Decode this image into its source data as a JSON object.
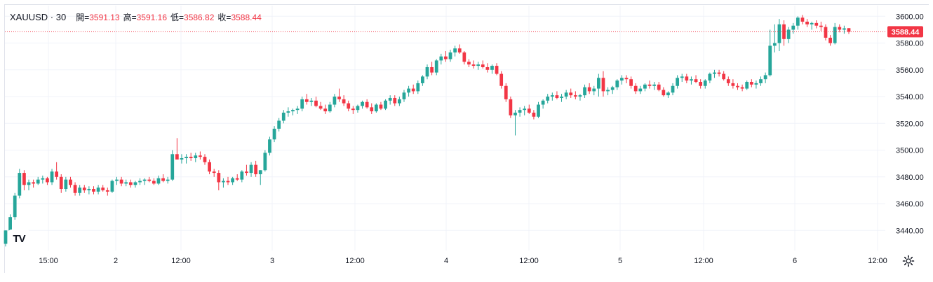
{
  "legend": {
    "symbol": "XAUUSD · 30",
    "open_label": "開=",
    "open": "3591.13",
    "high_label": "高=",
    "high": "3591.16",
    "low_label": "低=",
    "low": "3586.82",
    "close_label": "收=",
    "close": "3588.44"
  },
  "price_tag": "3588.44",
  "logo_text": "TV",
  "colors": {
    "up": "#26a69a",
    "down": "#f23645",
    "grid": "#f0f3fa",
    "price_line": "#f23645"
  },
  "chart_data": {
    "type": "candlestick",
    "symbol": "XAUUSD",
    "interval": "30",
    "ylim": [
      3425,
      3608
    ],
    "y_ticks": [
      3440,
      3460,
      3480,
      3500,
      3520,
      3540,
      3560,
      3580,
      3600
    ],
    "x_ticks": [
      "15:00",
      "2",
      "12:00",
      "3",
      "12:00",
      "4",
      "12:00",
      "5",
      "12:00",
      "6",
      "12:00"
    ],
    "last_price": 3588.44,
    "grid": true,
    "candles": [
      [
        3430,
        3440,
        3428,
        3440
      ],
      [
        3440,
        3452,
        3438,
        3450
      ],
      [
        3450,
        3468,
        3448,
        3466
      ],
      [
        3466,
        3486,
        3464,
        3483
      ],
      [
        3483,
        3485,
        3470,
        3474
      ],
      [
        3474,
        3478,
        3470,
        3476
      ],
      [
        3476,
        3478,
        3472,
        3475
      ],
      [
        3475,
        3480,
        3474,
        3478
      ],
      [
        3478,
        3481,
        3475,
        3479
      ],
      [
        3479,
        3480,
        3474,
        3476
      ],
      [
        3476,
        3486,
        3474,
        3484
      ],
      [
        3484,
        3491,
        3478,
        3480
      ],
      [
        3480,
        3482,
        3468,
        3471
      ],
      [
        3471,
        3480,
        3469,
        3478
      ],
      [
        3478,
        3480,
        3472,
        3474
      ],
      [
        3474,
        3476,
        3466,
        3468
      ],
      [
        3468,
        3474,
        3466,
        3472
      ],
      [
        3472,
        3474,
        3468,
        3470
      ],
      [
        3470,
        3473,
        3467,
        3471
      ],
      [
        3471,
        3473,
        3467,
        3469
      ],
      [
        3469,
        3474,
        3467,
        3472
      ],
      [
        3472,
        3474,
        3469,
        3470
      ],
      [
        3470,
        3472,
        3466,
        3469
      ],
      [
        3469,
        3478,
        3468,
        3477
      ],
      [
        3477,
        3480,
        3474,
        3478
      ],
      [
        3478,
        3480,
        3473,
        3475
      ],
      [
        3475,
        3478,
        3473,
        3476
      ],
      [
        3476,
        3478,
        3472,
        3474
      ],
      [
        3474,
        3477,
        3472,
        3476
      ],
      [
        3476,
        3479,
        3474,
        3477
      ],
      [
        3477,
        3479,
        3474,
        3478
      ],
      [
        3478,
        3480,
        3476,
        3477
      ],
      [
        3477,
        3479,
        3474,
        3475
      ],
      [
        3475,
        3481,
        3474,
        3479
      ],
      [
        3479,
        3482,
        3476,
        3477
      ],
      [
        3477,
        3480,
        3475,
        3478
      ],
      [
        3478,
        3500,
        3477,
        3497
      ],
      [
        3497,
        3509,
        3493,
        3493
      ],
      [
        3493,
        3497,
        3490,
        3494
      ],
      [
        3494,
        3497,
        3490,
        3495
      ],
      [
        3495,
        3498,
        3492,
        3494
      ],
      [
        3494,
        3498,
        3491,
        3496
      ],
      [
        3496,
        3499,
        3493,
        3495
      ],
      [
        3495,
        3497,
        3489,
        3491
      ],
      [
        3491,
        3493,
        3482,
        3484
      ],
      [
        3484,
        3486,
        3480,
        3483
      ],
      [
        3483,
        3485,
        3470,
        3476
      ],
      [
        3476,
        3479,
        3472,
        3477
      ],
      [
        3477,
        3480,
        3474,
        3476
      ],
      [
        3476,
        3480,
        3474,
        3479
      ],
      [
        3479,
        3482,
        3477,
        3478
      ],
      [
        3478,
        3485,
        3476,
        3484
      ],
      [
        3484,
        3489,
        3481,
        3483
      ],
      [
        3483,
        3491,
        3480,
        3489
      ],
      [
        3489,
        3492,
        3480,
        3482
      ],
      [
        3482,
        3485,
        3474,
        3485
      ],
      [
        3485,
        3500,
        3484,
        3498
      ],
      [
        3498,
        3510,
        3496,
        3508
      ],
      [
        3508,
        3518,
        3506,
        3516
      ],
      [
        3516,
        3524,
        3514,
        3522
      ],
      [
        3522,
        3530,
        3520,
        3528
      ],
      [
        3528,
        3532,
        3525,
        3529
      ],
      [
        3529,
        3531,
        3526,
        3530
      ],
      [
        3530,
        3533,
        3527,
        3531
      ],
      [
        3531,
        3540,
        3529,
        3538
      ],
      [
        3538,
        3542,
        3534,
        3536
      ],
      [
        3536,
        3539,
        3533,
        3537
      ],
      [
        3537,
        3540,
        3532,
        3533
      ],
      [
        3533,
        3536,
        3530,
        3531
      ],
      [
        3531,
        3534,
        3527,
        3529
      ],
      [
        3529,
        3536,
        3528,
        3534
      ],
      [
        3534,
        3542,
        3532,
        3540
      ],
      [
        3540,
        3546,
        3536,
        3538
      ],
      [
        3538,
        3541,
        3533,
        3535
      ],
      [
        3535,
        3537,
        3529,
        3531
      ],
      [
        3531,
        3533,
        3527,
        3530
      ],
      [
        3530,
        3534,
        3528,
        3533
      ],
      [
        3533,
        3537,
        3531,
        3536
      ],
      [
        3536,
        3538,
        3531,
        3532
      ],
      [
        3532,
        3535,
        3527,
        3529
      ],
      [
        3529,
        3535,
        3528,
        3534
      ],
      [
        3534,
        3536,
        3530,
        3531
      ],
      [
        3531,
        3538,
        3530,
        3537
      ],
      [
        3537,
        3541,
        3534,
        3539
      ],
      [
        3539,
        3541,
        3533,
        3535
      ],
      [
        3535,
        3540,
        3533,
        3538
      ],
      [
        3538,
        3545,
        3536,
        3543
      ],
      [
        3543,
        3548,
        3540,
        3546
      ],
      [
        3546,
        3549,
        3542,
        3544
      ],
      [
        3544,
        3552,
        3542,
        3550
      ],
      [
        3550,
        3556,
        3548,
        3555
      ],
      [
        3555,
        3564,
        3553,
        3562
      ],
      [
        3562,
        3566,
        3556,
        3558
      ],
      [
        3558,
        3568,
        3556,
        3567
      ],
      [
        3567,
        3572,
        3564,
        3570
      ],
      [
        3570,
        3574,
        3566,
        3568
      ],
      [
        3568,
        3575,
        3566,
        3573
      ],
      [
        3573,
        3578,
        3570,
        3576
      ],
      [
        3576,
        3579,
        3572,
        3573
      ],
      [
        3573,
        3574,
        3564,
        3566
      ],
      [
        3566,
        3568,
        3562,
        3564
      ],
      [
        3564,
        3567,
        3561,
        3563
      ],
      [
        3563,
        3566,
        3560,
        3564
      ],
      [
        3564,
        3567,
        3561,
        3562
      ],
      [
        3562,
        3565,
        3558,
        3560
      ],
      [
        3560,
        3564,
        3557,
        3563
      ],
      [
        3563,
        3565,
        3556,
        3557
      ],
      [
        3557,
        3559,
        3546,
        3548
      ],
      [
        3548,
        3550,
        3536,
        3538
      ],
      [
        3538,
        3540,
        3524,
        3526
      ],
      [
        3526,
        3530,
        3511,
        3528
      ],
      [
        3528,
        3532,
        3525,
        3530
      ],
      [
        3530,
        3533,
        3526,
        3531
      ],
      [
        3531,
        3534,
        3527,
        3528
      ],
      [
        3528,
        3530,
        3523,
        3525
      ],
      [
        3525,
        3536,
        3524,
        3534
      ],
      [
        3534,
        3538,
        3531,
        3537
      ],
      [
        3537,
        3542,
        3535,
        3540
      ],
      [
        3540,
        3543,
        3537,
        3541
      ],
      [
        3541,
        3544,
        3538,
        3539
      ],
      [
        3539,
        3542,
        3536,
        3540
      ],
      [
        3540,
        3545,
        3538,
        3543
      ],
      [
        3543,
        3546,
        3539,
        3541
      ],
      [
        3541,
        3544,
        3538,
        3540
      ],
      [
        3540,
        3542,
        3537,
        3541
      ],
      [
        3541,
        3549,
        3539,
        3547
      ],
      [
        3547,
        3550,
        3542,
        3544
      ],
      [
        3544,
        3548,
        3541,
        3546
      ],
      [
        3546,
        3557,
        3540,
        3554
      ],
      [
        3554,
        3559,
        3540,
        3544
      ],
      [
        3544,
        3547,
        3541,
        3545
      ],
      [
        3545,
        3548,
        3542,
        3547
      ],
      [
        3547,
        3553,
        3545,
        3552
      ],
      [
        3552,
        3556,
        3549,
        3554
      ],
      [
        3554,
        3556,
        3550,
        3553
      ],
      [
        3553,
        3555,
        3546,
        3548
      ],
      [
        3548,
        3550,
        3542,
        3544
      ],
      [
        3544,
        3548,
        3542,
        3546
      ],
      [
        3546,
        3550,
        3544,
        3549
      ],
      [
        3549,
        3552,
        3546,
        3548
      ],
      [
        3548,
        3551,
        3545,
        3549
      ],
      [
        3549,
        3551,
        3544,
        3545
      ],
      [
        3545,
        3547,
        3540,
        3541
      ],
      [
        3541,
        3544,
        3539,
        3543
      ],
      [
        3543,
        3550,
        3541,
        3548
      ],
      [
        3548,
        3556,
        3546,
        3554
      ],
      [
        3554,
        3557,
        3551,
        3555
      ],
      [
        3555,
        3557,
        3550,
        3552
      ],
      [
        3552,
        3555,
        3549,
        3553
      ],
      [
        3553,
        3556,
        3550,
        3551
      ],
      [
        3551,
        3553,
        3546,
        3548
      ],
      [
        3548,
        3553,
        3546,
        3552
      ],
      [
        3552,
        3558,
        3550,
        3557
      ],
      [
        3557,
        3560,
        3554,
        3558
      ],
      [
        3558,
        3560,
        3555,
        3557
      ],
      [
        3557,
        3559,
        3552,
        3553
      ],
      [
        3553,
        3555,
        3548,
        3550
      ],
      [
        3550,
        3553,
        3546,
        3548
      ],
      [
        3548,
        3550,
        3545,
        3547
      ],
      [
        3547,
        3549,
        3544,
        3546
      ],
      [
        3546,
        3552,
        3545,
        3551
      ],
      [
        3551,
        3553,
        3547,
        3549
      ],
      [
        3549,
        3552,
        3546,
        3550
      ],
      [
        3550,
        3555,
        3548,
        3553
      ],
      [
        3553,
        3558,
        3550,
        3556
      ],
      [
        3556,
        3590,
        3555,
        3578
      ],
      [
        3578,
        3594,
        3573,
        3580
      ],
      [
        3580,
        3598,
        3574,
        3594
      ],
      [
        3594,
        3597,
        3578,
        3583
      ],
      [
        3583,
        3592,
        3580,
        3590
      ],
      [
        3590,
        3595,
        3587,
        3593
      ],
      [
        3593,
        3600,
        3590,
        3599
      ],
      [
        3599,
        3601,
        3594,
        3596
      ],
      [
        3596,
        3598,
        3592,
        3594
      ],
      [
        3594,
        3596,
        3590,
        3595
      ],
      [
        3595,
        3597,
        3591,
        3593
      ],
      [
        3593,
        3596,
        3589,
        3592
      ],
      [
        3592,
        3594,
        3582,
        3584
      ],
      [
        3584,
        3586,
        3578,
        3580
      ],
      [
        3580,
        3595,
        3579,
        3592
      ],
      [
        3592,
        3594,
        3588,
        3590
      ],
      [
        3590,
        3593,
        3587,
        3591
      ],
      [
        3591.13,
        3591.16,
        3586.82,
        3588.44
      ]
    ]
  }
}
